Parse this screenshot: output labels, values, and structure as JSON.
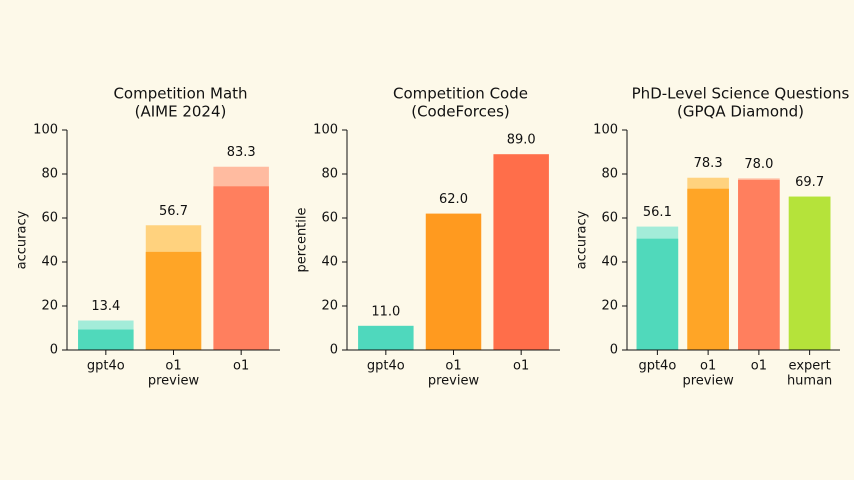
{
  "chart_data": [
    {
      "type": "bar",
      "title": "Competition Math",
      "subtitle": "(AIME 2024)",
      "ylabel": "accuracy",
      "categories": [
        [
          "gpt4o"
        ],
        [
          "o1",
          "preview"
        ],
        [
          "o1"
        ]
      ],
      "series": [
        {
          "color": [
            "#a3ecd9",
            "#ffd27e",
            "#ffbba0"
          ],
          "values": [
            13.4,
            56.7,
            83.3
          ],
          "value_labels": [
            "13.4",
            "56.7",
            "83.3"
          ]
        },
        {
          "color": [
            "#50d9bb",
            "#ffa526",
            "#ff7f5e"
          ],
          "values": [
            9.3,
            44.6,
            74.4
          ]
        }
      ],
      "ylim": [
        0,
        100
      ],
      "yticks": [
        0,
        20,
        40,
        60,
        80,
        100
      ]
    },
    {
      "type": "bar",
      "title": "Competition Code",
      "subtitle": "(CodeForces)",
      "ylabel": "percentile",
      "categories": [
        [
          "gpt4o"
        ],
        [
          "o1",
          "preview"
        ],
        [
          "o1"
        ]
      ],
      "series": [
        {
          "color": [
            "#4fd8bd",
            "#ff9a1f",
            "#ff6e4a"
          ],
          "values": [
            11.0,
            62.0,
            89.0
          ],
          "value_labels": [
            "11.0",
            "62.0",
            "89.0"
          ]
        }
      ],
      "ylim": [
        0,
        100
      ],
      "yticks": [
        0,
        20,
        40,
        60,
        80,
        100
      ]
    },
    {
      "type": "bar",
      "title": "PhD-Level Science Questions",
      "subtitle": "(GPQA Diamond)",
      "ylabel": "accuracy",
      "categories": [
        [
          "gpt4o"
        ],
        [
          "o1",
          "preview"
        ],
        [
          "o1"
        ],
        [
          "expert",
          "human"
        ]
      ],
      "series": [
        {
          "color": [
            "#a3ecd9",
            "#ffd27e",
            "#ffbba0",
            "#b5e33a"
          ],
          "values": [
            56.1,
            78.3,
            78.0,
            69.7
          ],
          "value_labels": [
            "56.1",
            "78.3",
            "78.0",
            "69.7"
          ]
        },
        {
          "color": [
            "#50d9bb",
            "#ffa526",
            "#ff7f5e",
            "#b5e33a"
          ],
          "values": [
            50.6,
            73.3,
            77.3,
            69.7
          ]
        }
      ],
      "ylim": [
        0,
        100
      ],
      "yticks": [
        0,
        20,
        40,
        60,
        80,
        100
      ]
    }
  ]
}
